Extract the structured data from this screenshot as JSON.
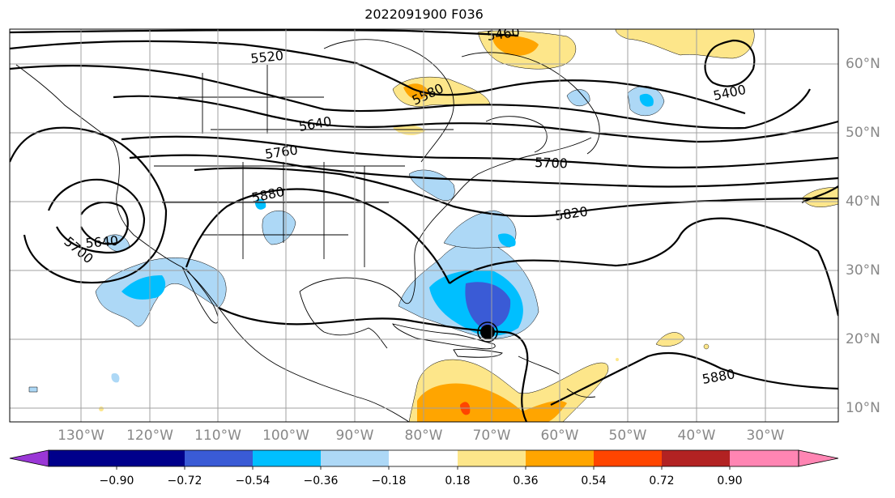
{
  "title": "2022091900 F036",
  "map": {
    "lon_ticks": [
      {
        "value": -130,
        "label": "130°W"
      },
      {
        "value": -120,
        "label": "120°W"
      },
      {
        "value": -110,
        "label": "110°W"
      },
      {
        "value": -100,
        "label": "100°W"
      },
      {
        "value": -90,
        "label": "90°W"
      },
      {
        "value": -80,
        "label": "80°W"
      },
      {
        "value": -70,
        "label": "70°W"
      },
      {
        "value": -60,
        "label": "60°W"
      },
      {
        "value": -50,
        "label": "50°W"
      },
      {
        "value": -40,
        "label": "40°W"
      },
      {
        "value": -30,
        "label": "30°W"
      }
    ],
    "lat_ticks": [
      {
        "value": 60,
        "label": "60°N"
      },
      {
        "value": 50,
        "label": "50°N"
      },
      {
        "value": 40,
        "label": "40°N"
      },
      {
        "value": 30,
        "label": "30°N"
      },
      {
        "value": 20,
        "label": "20°N"
      },
      {
        "value": 10,
        "label": "10°N"
      }
    ],
    "contour_labels": [
      "5460",
      "5520",
      "5580",
      "5400",
      "5640",
      "5760",
      "5700",
      "5880",
      "5820",
      "5700",
      "5640",
      "5880"
    ],
    "grid": true
  },
  "colorbar": {
    "ticks": [
      "−0.90",
      "−0.72",
      "−0.54",
      "−0.36",
      "−0.18",
      "0.18",
      "0.36",
      "0.54",
      "0.72",
      "0.90"
    ],
    "colors": [
      "#9a37d6",
      "#00008b",
      "#3a5bd6",
      "#00bfff",
      "#add8f6",
      "#ffffff",
      "#fde68a",
      "#ffa500",
      "#ff4500",
      "#b22222",
      "#ff85b3"
    ]
  }
}
